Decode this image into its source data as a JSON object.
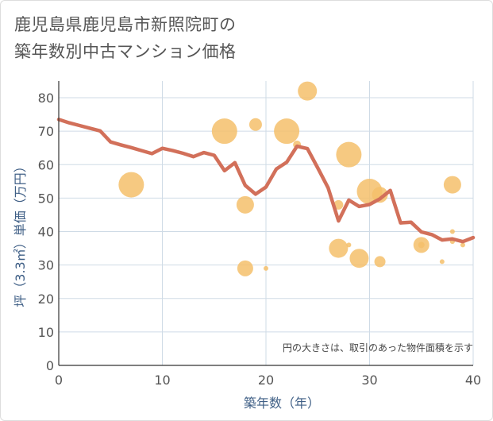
{
  "title_line1": "鹿児島県鹿児島市新照院町の",
  "title_line2": "築年数別中古マンション価格",
  "chart_data": {
    "type": "scatter+line",
    "title": "鹿児島県鹿児島市新照院町の築年数別中古マンション価格",
    "xlabel": "築年数（年）",
    "ylabel": "坪（3.3㎡）単価（万円）",
    "xlim": [
      0,
      40
    ],
    "ylim": [
      0,
      85
    ],
    "xticks": [
      0,
      10,
      20,
      30,
      40
    ],
    "yticks": [
      0,
      10,
      20,
      30,
      40,
      50,
      60,
      70,
      80
    ],
    "grid": true,
    "annotation": "円の大きさは、取引のあった物件面積を示す",
    "line_color": "#d2705a",
    "bubble_color": "#f5c06b",
    "average_line": {
      "x": [
        0,
        1,
        2,
        3,
        4,
        5,
        6,
        7,
        8,
        9,
        10,
        11,
        12,
        13,
        14,
        15,
        16,
        17,
        18,
        19,
        20,
        21,
        22,
        23,
        24,
        25,
        26,
        27,
        28,
        29,
        30,
        31,
        32,
        33,
        34,
        35,
        36,
        37,
        38,
        39,
        40
      ],
      "y": [
        73.5,
        72.5,
        71.7,
        70.9,
        70.1,
        66.8,
        65.9,
        65.1,
        64.2,
        63.3,
        64.9,
        64.2,
        63.4,
        62.4,
        63.6,
        62.8,
        58.2,
        60.6,
        53.8,
        51.2,
        53.3,
        58.7,
        60.7,
        65.5,
        64.8,
        59.0,
        53.1,
        43.2,
        49.4,
        47.5,
        48.1,
        49.8,
        52.3,
        42.6,
        42.8,
        39.9,
        39.1,
        37.5,
        37.8,
        37.0,
        38.2
      ]
    },
    "bubbles": [
      {
        "x": 7,
        "y": 54,
        "size": 16
      },
      {
        "x": 16,
        "y": 70,
        "size": 16
      },
      {
        "x": 18,
        "y": 48,
        "size": 11
      },
      {
        "x": 18,
        "y": 29,
        "size": 10
      },
      {
        "x": 19,
        "y": 72,
        "size": 8
      },
      {
        "x": 20,
        "y": 29,
        "size": 3
      },
      {
        "x": 22,
        "y": 70,
        "size": 16
      },
      {
        "x": 23,
        "y": 66,
        "size": 5
      },
      {
        "x": 24,
        "y": 82,
        "size": 12
      },
      {
        "x": 27,
        "y": 35,
        "size": 12
      },
      {
        "x": 27,
        "y": 48,
        "size": 6
      },
      {
        "x": 28,
        "y": 63,
        "size": 16
      },
      {
        "x": 28,
        "y": 36,
        "size": 3
      },
      {
        "x": 29,
        "y": 32,
        "size": 12
      },
      {
        "x": 30,
        "y": 52,
        "size": 16
      },
      {
        "x": 31,
        "y": 51,
        "size": 10
      },
      {
        "x": 31,
        "y": 31,
        "size": 7
      },
      {
        "x": 35,
        "y": 36,
        "size": 10
      },
      {
        "x": 35,
        "y": 36,
        "size": 4
      },
      {
        "x": 37,
        "y": 31,
        "size": 3
      },
      {
        "x": 38,
        "y": 54,
        "size": 11
      },
      {
        "x": 38,
        "y": 40,
        "size": 3
      },
      {
        "x": 38,
        "y": 37,
        "size": 3
      },
      {
        "x": 39,
        "y": 36,
        "size": 3
      }
    ]
  }
}
